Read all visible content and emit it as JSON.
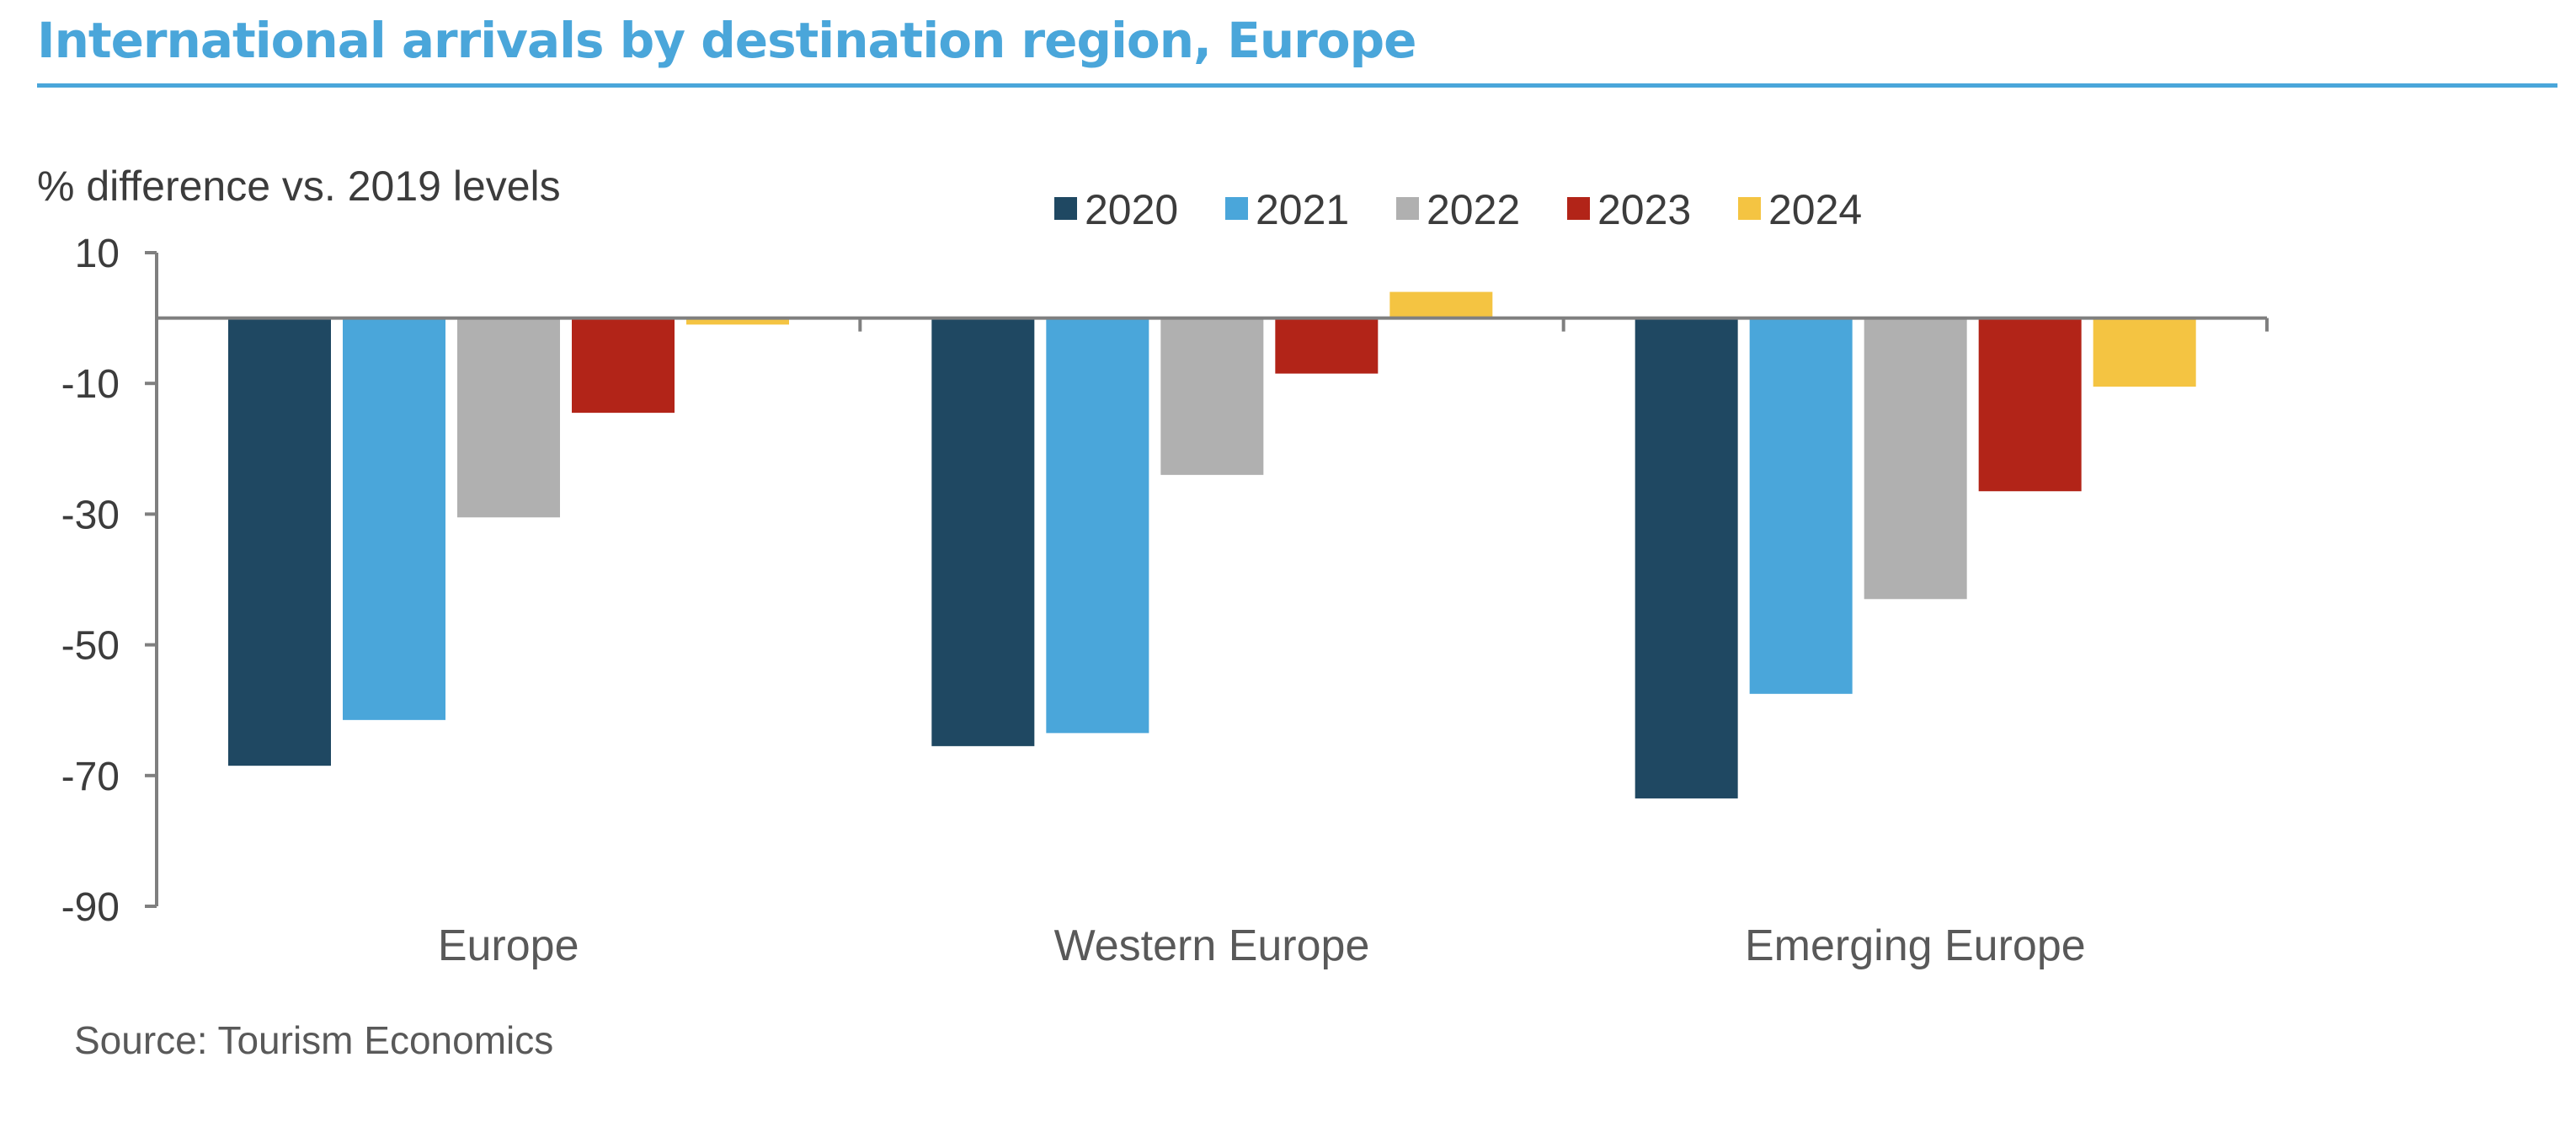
{
  "chart_data": {
    "type": "bar",
    "title": "International arrivals by destination region, Europe",
    "ylabel": "% difference vs. 2019 levels",
    "xlabel": "",
    "source": "Source: Tourism Economics",
    "categories": [
      "Europe",
      "Western Europe",
      "Emerging Europe"
    ],
    "series": [
      {
        "name": "2020",
        "color": "#1f4862",
        "values": [
          -68.5,
          -65.5,
          -73.5
        ]
      },
      {
        "name": "2021",
        "color": "#4aa6da",
        "values": [
          -61.5,
          -63.5,
          -57.5
        ]
      },
      {
        "name": "2022",
        "color": "#b0b0b0",
        "values": [
          -30.5,
          -24,
          -43
        ]
      },
      {
        "name": "2023",
        "color": "#b22418",
        "values": [
          -14.5,
          -8.5,
          -26.5
        ]
      },
      {
        "name": "2024",
        "color": "#f4c442",
        "values": [
          -1,
          4,
          -10.5
        ]
      }
    ],
    "ylim": [
      -90,
      10
    ],
    "yticks": [
      10,
      -10,
      -30,
      -50,
      -70,
      -90
    ],
    "grid": false,
    "legend_position": "top-center"
  }
}
